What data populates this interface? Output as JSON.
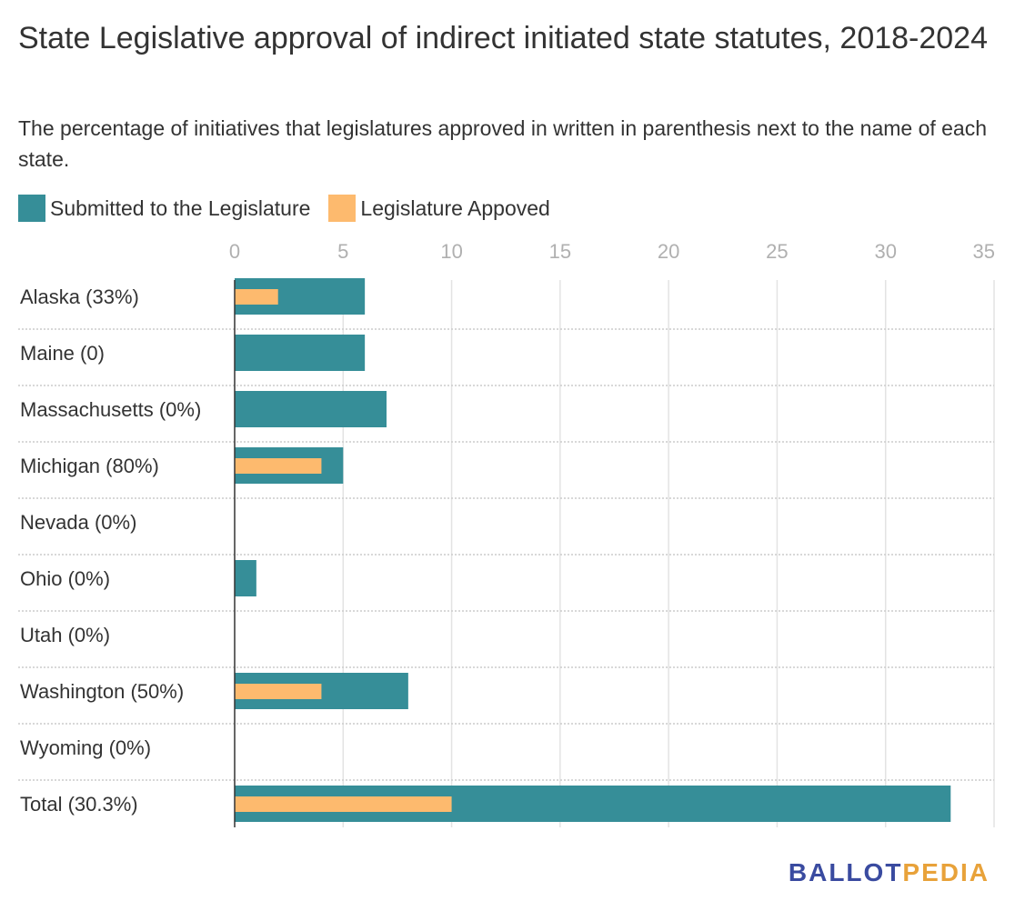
{
  "title": "State Legislative approval of indirect initiated state statutes, 2018-2024",
  "subtitle": "The percentage of initiatives that legislatures approved in written in parenthesis next to the name of each state.",
  "legend": [
    {
      "label": "Submitted to the Legislature",
      "color": "#368e98"
    },
    {
      "label": "Legislature Appoved",
      "color": "#fdba6e"
    }
  ],
  "logo": {
    "part1": "BALLOT",
    "part2": "PEDIA"
  },
  "chart_data": {
    "type": "bar",
    "orientation": "horizontal",
    "categories": [
      "Alaska (33%)",
      "Maine (0)",
      "Massachusetts (0%)",
      "Michigan (80%)",
      "Nevada (0%)",
      "Ohio (0%)",
      "Utah (0%)",
      "Washington (50%)",
      "Wyoming (0%)",
      "Total (30.3%)"
    ],
    "series": [
      {
        "name": "Submitted to the Legislature",
        "color": "#368e98",
        "values": [
          6,
          6,
          7,
          5,
          0,
          1,
          0,
          8,
          0,
          33
        ]
      },
      {
        "name": "Legislature Appoved",
        "color": "#fdba6e",
        "values": [
          2,
          0,
          0,
          4,
          0,
          0,
          0,
          4,
          0,
          10
        ]
      }
    ],
    "xlim": [
      0,
      35
    ],
    "xticks": [
      0,
      5,
      10,
      15,
      20,
      25,
      30,
      35
    ],
    "grid": true,
    "legend_position": "top-left"
  }
}
